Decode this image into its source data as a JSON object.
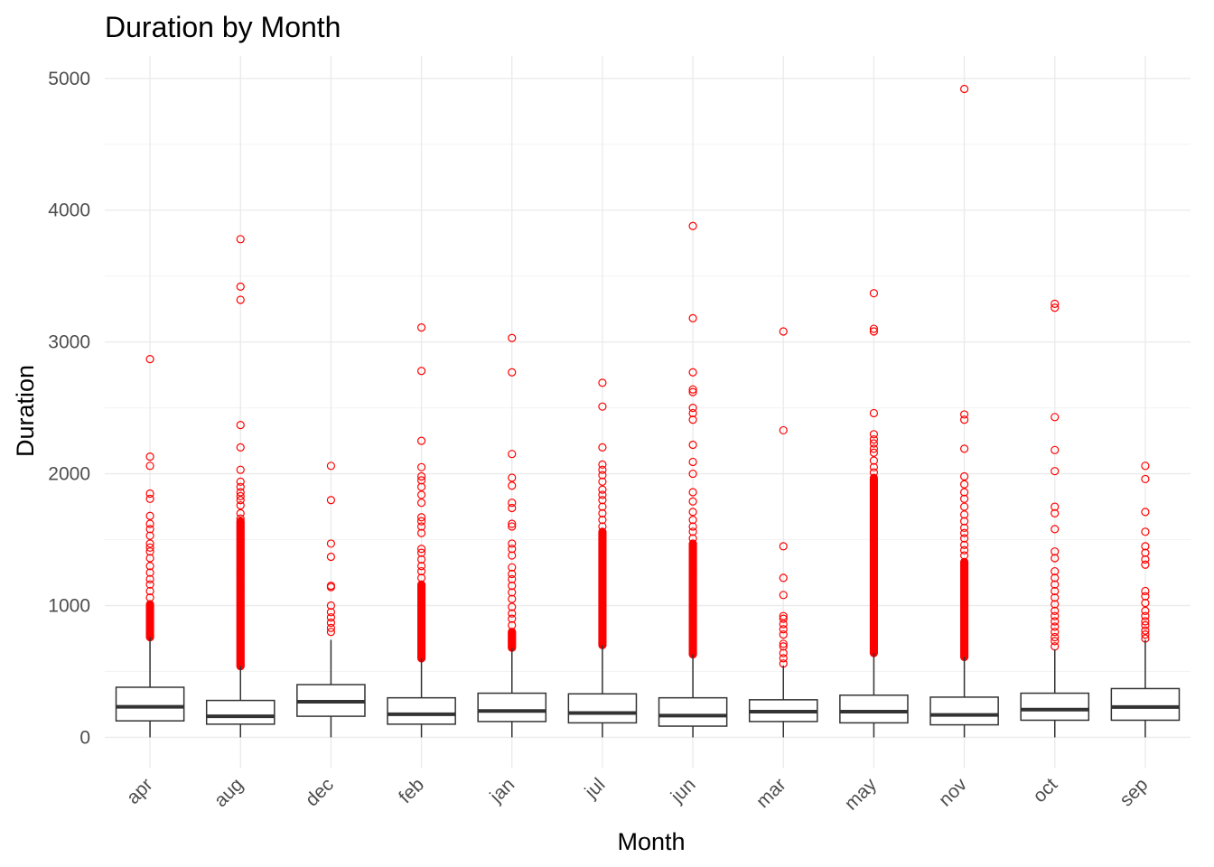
{
  "chart_data": {
    "type": "boxplot",
    "title": "Duration by Month",
    "xlabel": "Month",
    "ylabel": "Duration",
    "ylim": [
      -230,
      5170
    ],
    "yticks": [
      0,
      1000,
      2000,
      3000,
      4000,
      5000
    ],
    "grid": true,
    "outlier_color": "#ff0000",
    "box_color": "#333333",
    "categories": [
      "apr",
      "aug",
      "dec",
      "feb",
      "jan",
      "jul",
      "jun",
      "mar",
      "may",
      "nov",
      "oct",
      "sep"
    ],
    "boxes": [
      {
        "month": "apr",
        "whisker_low": 0,
        "q1": 125,
        "median": 232,
        "q3": 380,
        "whisker_high": 760,
        "outliers_dense": [
          760,
          1010
        ],
        "outliers": [
          1060,
          1110,
          1160,
          1200,
          1250,
          1300,
          1360,
          1410,
          1440,
          1470,
          1530,
          1580,
          1620,
          1680,
          1810,
          1850,
          2060,
          2130,
          2870
        ]
      },
      {
        "month": "aug",
        "whisker_low": 0,
        "q1": 100,
        "median": 160,
        "q3": 280,
        "whisker_high": 540,
        "outliers_dense": [
          540,
          1640
        ],
        "outliers": [
          1660,
          1700,
          1760,
          1800,
          1830,
          1860,
          1900,
          1940,
          2030,
          2200,
          2370,
          3320,
          3420,
          3780
        ]
      },
      {
        "month": "dec",
        "whisker_low": 0,
        "q1": 160,
        "median": 270,
        "q3": 400,
        "whisker_high": 740,
        "outliers_dense": [],
        "outliers": [
          800,
          830,
          870,
          910,
          950,
          1000,
          1140,
          1150,
          1370,
          1470,
          1800,
          2060
        ]
      },
      {
        "month": "feb",
        "whisker_low": 0,
        "q1": 100,
        "median": 175,
        "q3": 300,
        "whisker_high": 600,
        "outliers_dense": [
          600,
          1160
        ],
        "outliers": [
          1210,
          1260,
          1300,
          1350,
          1400,
          1430,
          1550,
          1600,
          1640,
          1670,
          1780,
          1840,
          1900,
          1950,
          1980,
          2050,
          2250,
          2780,
          3110
        ]
      },
      {
        "month": "jan",
        "whisker_low": 0,
        "q1": 120,
        "median": 200,
        "q3": 335,
        "whisker_high": 680,
        "outliers_dense": [
          680,
          800
        ],
        "outliers": [
          850,
          900,
          940,
          990,
          1050,
          1100,
          1150,
          1200,
          1240,
          1290,
          1380,
          1430,
          1470,
          1600,
          1620,
          1740,
          1780,
          1910,
          1970,
          2150,
          2770,
          3030
        ]
      },
      {
        "month": "jul",
        "whisker_low": 0,
        "q1": 110,
        "median": 185,
        "q3": 330,
        "whisker_high": 700,
        "outliers_dense": [
          700,
          1560
        ],
        "outliers": [
          1600,
          1650,
          1700,
          1750,
          1800,
          1840,
          1880,
          1940,
          1990,
          2030,
          2070,
          2200,
          2510,
          2690
        ]
      },
      {
        "month": "jun",
        "whisker_low": 0,
        "q1": 85,
        "median": 165,
        "q3": 300,
        "whisker_high": 630,
        "outliers_dense": [
          630,
          1470
        ],
        "outliers": [
          1510,
          1560,
          1600,
          1650,
          1710,
          1790,
          1860,
          2000,
          2090,
          2220,
          2410,
          2460,
          2500,
          2620,
          2640,
          2770,
          3180,
          3880
        ]
      },
      {
        "month": "mar",
        "whisker_low": 0,
        "q1": 120,
        "median": 195,
        "q3": 285,
        "whisker_high": 545,
        "outliers_dense": [],
        "outliers": [
          560,
          600,
          640,
          690,
          710,
          780,
          820,
          860,
          900,
          920,
          1080,
          1210,
          1450,
          2330,
          3080
        ]
      },
      {
        "month": "may",
        "whisker_low": 0,
        "q1": 110,
        "median": 195,
        "q3": 320,
        "whisker_high": 640,
        "outliers_dense": [
          640,
          1970
        ],
        "outliers": [
          2010,
          2050,
          2100,
          2160,
          2190,
          2230,
          2260,
          2300,
          2460,
          3080,
          3100,
          3370
        ]
      },
      {
        "month": "nov",
        "whisker_low": 0,
        "q1": 95,
        "median": 170,
        "q3": 305,
        "whisker_high": 610,
        "outliers_dense": [
          610,
          1330
        ],
        "outliers": [
          1380,
          1420,
          1460,
          1510,
          1550,
          1590,
          1640,
          1690,
          1750,
          1810,
          1860,
          1920,
          1980,
          2190,
          2410,
          2450,
          4920
        ]
      },
      {
        "month": "oct",
        "whisker_low": 0,
        "q1": 130,
        "median": 210,
        "q3": 335,
        "whisker_high": 665,
        "outliers_dense": [],
        "outliers": [
          690,
          730,
          760,
          800,
          840,
          880,
          920,
          960,
          1010,
          1060,
          1110,
          1160,
          1210,
          1260,
          1360,
          1410,
          1580,
          1700,
          1750,
          2020,
          2180,
          2430,
          3260,
          3290
        ]
      },
      {
        "month": "sep",
        "whisker_low": 0,
        "q1": 130,
        "median": 230,
        "q3": 370,
        "whisker_high": 740,
        "outliers_dense": [],
        "outliers": [
          750,
          780,
          810,
          850,
          880,
          920,
          960,
          1020,
          1070,
          1110,
          1310,
          1350,
          1400,
          1450,
          1560,
          1710,
          1960,
          2060
        ]
      }
    ]
  }
}
